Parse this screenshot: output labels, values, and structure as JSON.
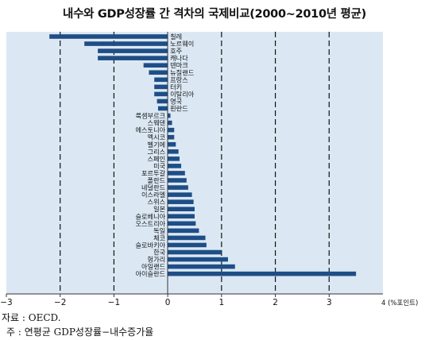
{
  "chart_data": {
    "type": "bar",
    "orientation": "horizontal",
    "title": "내수와 GDP성장률 간 격차의 국제비교(2000~2010년 평균)",
    "unit_label": "4 (%포인트)",
    "xlim": [
      -3,
      4
    ],
    "xticks": [
      "−3",
      "−2",
      "−1",
      "0",
      "1",
      "2",
      "3"
    ],
    "gridlines": [
      -2,
      -1,
      1,
      2,
      3
    ],
    "grid": true,
    "bar_color": "#1f4e86",
    "plot_background": "#dbe8f4",
    "categories": [
      "칠레",
      "노르웨이",
      "호주",
      "캐나다",
      "덴마크",
      "뉴질랜드",
      "프랑스",
      "터키",
      "이탈리아",
      "영국",
      "핀란드",
      "룩셈부르크",
      "스웨덴",
      "에스토니아",
      "멕시코",
      "벨기에",
      "그리스",
      "스페인",
      "미국",
      "포르투갈",
      "폴란드",
      "네덜란드",
      "이스라엘",
      "스위스",
      "일본",
      "슬로베니아",
      "오스트리아",
      "독일",
      "체코",
      "슬로바키아",
      "한국",
      "헝가리",
      "아일랜드",
      "아이슬란드"
    ],
    "values": [
      -2.2,
      -1.55,
      -1.3,
      -1.3,
      -0.45,
      -0.35,
      -0.25,
      -0.25,
      -0.25,
      -0.2,
      -0.18,
      0.05,
      0.08,
      0.12,
      0.12,
      0.15,
      0.2,
      0.22,
      0.25,
      0.32,
      0.35,
      0.38,
      0.45,
      0.48,
      0.5,
      0.5,
      0.52,
      0.58,
      0.7,
      0.72,
      1.0,
      1.12,
      1.25,
      3.5
    ]
  },
  "source_note": "자료 : OECD.",
  "footnote": "주 : 연평균 GDP성장률−내수증가율"
}
